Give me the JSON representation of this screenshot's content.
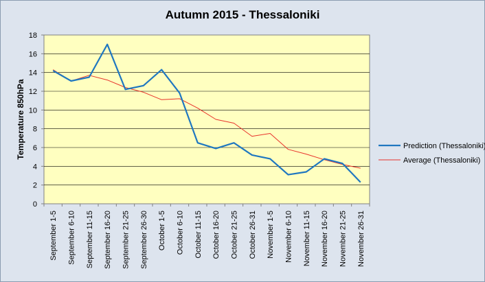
{
  "chart_data": {
    "type": "line",
    "title": "Autumn 2015 - Thessaloniki",
    "xlabel": "",
    "ylabel": "Temperature 850hPa",
    "ylim": [
      0,
      18
    ],
    "yticks": [
      0,
      2,
      4,
      6,
      8,
      10,
      12,
      14,
      16,
      18
    ],
    "grid": true,
    "legend": "right",
    "categories": [
      "September 1-5",
      "September 6-10",
      "September 11-15",
      "September 16-20",
      "September 21-25",
      "September 26-30",
      "October 1-5",
      "October 6-10",
      "October 11-15",
      "October 16-20",
      "October 21-25",
      "October 26-31",
      "November 1-5",
      "November 6-10",
      "November 11-15",
      "November 16-20",
      "November 21-25",
      "November 26-31"
    ],
    "series": [
      {
        "name": "Prediction (Thessaloniki)",
        "color": "#1f77c0",
        "values": [
          14.2,
          13.1,
          13.5,
          17.0,
          12.2,
          12.6,
          14.3,
          11.8,
          6.5,
          5.9,
          6.5,
          5.2,
          4.8,
          3.1,
          3.4,
          4.8,
          4.3,
          2.3
        ]
      },
      {
        "name": "Average (Thessaloniki)",
        "color": "#e8312a",
        "values": [
          14.3,
          13.1,
          13.7,
          13.2,
          12.4,
          11.9,
          11.1,
          11.2,
          10.2,
          9.0,
          8.6,
          7.2,
          7.5,
          5.8,
          5.3,
          4.7,
          4.2,
          3.8
        ]
      }
    ],
    "colors": {
      "plot_background": "#ffffc0",
      "chart_background": "#dde4ee",
      "gridline": "#000000"
    }
  }
}
